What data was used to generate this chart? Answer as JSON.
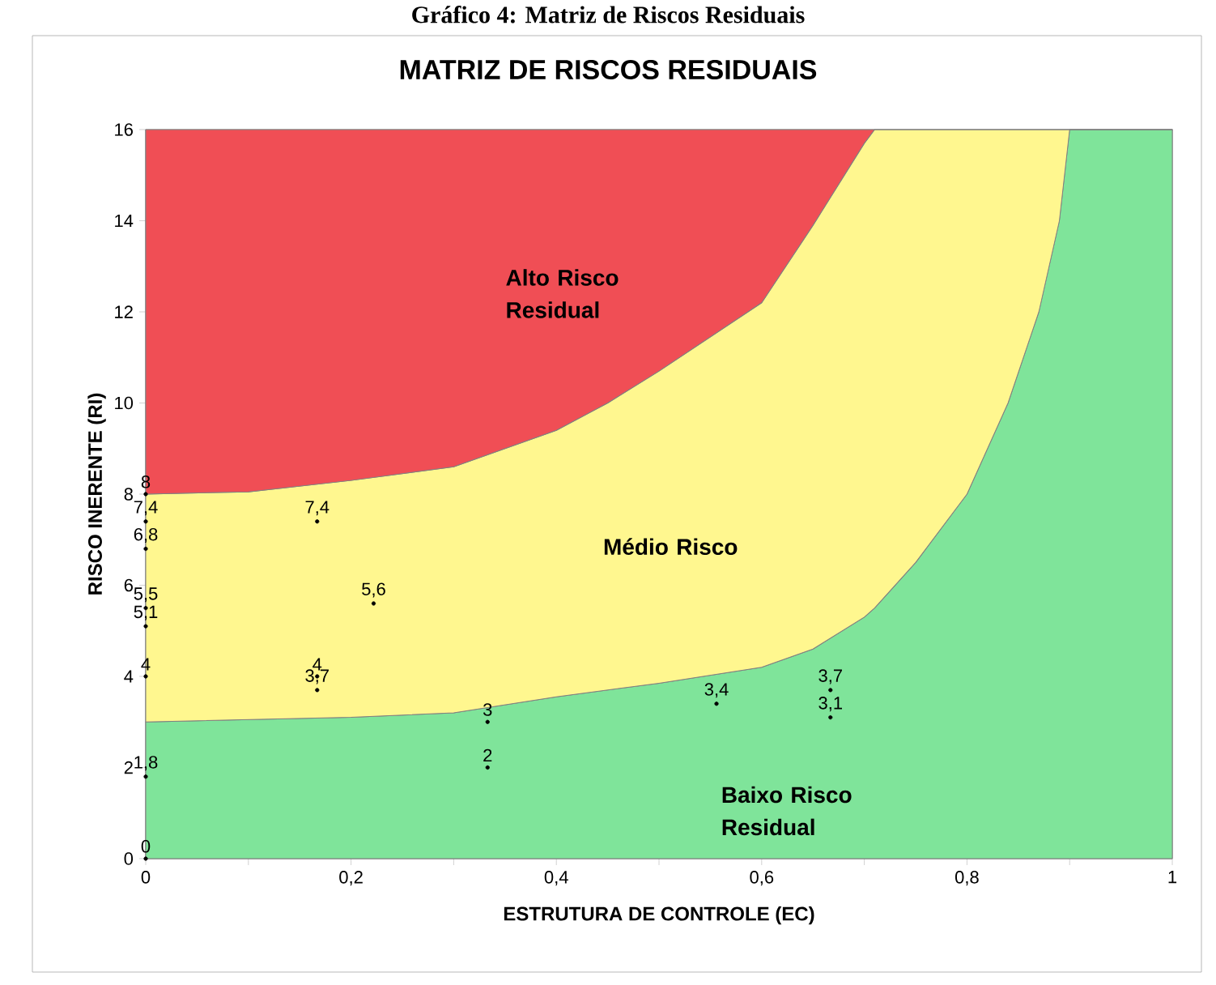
{
  "chart_data": {
    "type": "area",
    "title": "Gráfico 4: Matriz de Riscos Residuais",
    "subtitle": "MATRIZ DE RISCOS RESIDUAIS",
    "xlabel": "ESTRUTURA DE CONTROLE (EC)",
    "ylabel": "RISCO INERENTE (RI)",
    "xlim": [
      0,
      1
    ],
    "ylim": [
      0,
      16
    ],
    "xticks": [
      0,
      {
        "value": 0.1,
        "label": null
      },
      {
        "value": 0.2,
        "label": "0,2"
      },
      {
        "value": 0.3,
        "label": null
      },
      {
        "value": 0.4,
        "label": "0,4"
      },
      {
        "value": 0.5,
        "label": null
      },
      {
        "value": 0.6,
        "label": "0,6"
      },
      {
        "value": 0.7,
        "label": null
      },
      {
        "value": 0.8,
        "label": "0,8"
      },
      {
        "value": 0.9,
        "label": null
      },
      1
    ],
    "yticks": [
      0,
      2,
      4,
      6,
      8,
      10,
      12,
      14,
      16
    ],
    "grid": true,
    "stacked": true,
    "x": [
      0,
      0.1,
      0.2,
      0.3,
      0.4,
      0.45,
      0.5,
      0.6,
      0.65,
      0.7,
      0.71,
      0.75,
      0.8,
      0.84,
      0.87,
      0.89,
      0.9,
      1
    ],
    "series": [
      {
        "name": "Baixo Risco Residual",
        "color": "#7fe49a",
        "values": [
          3,
          3.05,
          3.1,
          3.2,
          3.55,
          3.7,
          3.85,
          4.2,
          4.6,
          5.3,
          5.5,
          6.5,
          8,
          10,
          12,
          14,
          16,
          16
        ]
      },
      {
        "name": "Médio Risco",
        "color": "#fff78f",
        "values": [
          5,
          5,
          5.2,
          5.4,
          5.85,
          6.3,
          6.85,
          8,
          9.3,
          10.4,
          10.5,
          9.5,
          8,
          6,
          4,
          2,
          0,
          0
        ]
      },
      {
        "name": "Alto Risco Residual",
        "color": "#f04e55",
        "values": [
          8,
          7.95,
          7.7,
          7.4,
          6.6,
          6,
          5.3,
          3.8,
          2.1,
          0.3,
          0,
          0,
          0,
          0,
          0,
          0,
          0,
          0
        ]
      },
      {
        "type": "scatter",
        "color": "#000000",
        "marker": "circle",
        "x": [
          0,
          0,
          0,
          0,
          0,
          0,
          0,
          0,
          0.167,
          0.167,
          0.167,
          0.222,
          0.333,
          0.333,
          0.556,
          0.667,
          0.667
        ],
        "values": [
          8,
          7.4,
          6.8,
          5.5,
          5.1,
          4,
          1.8,
          0,
          7.4,
          4,
          3.7,
          5.6,
          3,
          2,
          3.4,
          3.7,
          3.1
        ],
        "value_labels": [
          "8",
          "7,4",
          "6,8",
          "5,5",
          "5,1",
          "4",
          "1,8",
          "0",
          "7,4",
          "4",
          "3,7",
          "5,6",
          "3",
          "2",
          "3,4",
          "3,7",
          "3,1"
        ]
      }
    ]
  }
}
